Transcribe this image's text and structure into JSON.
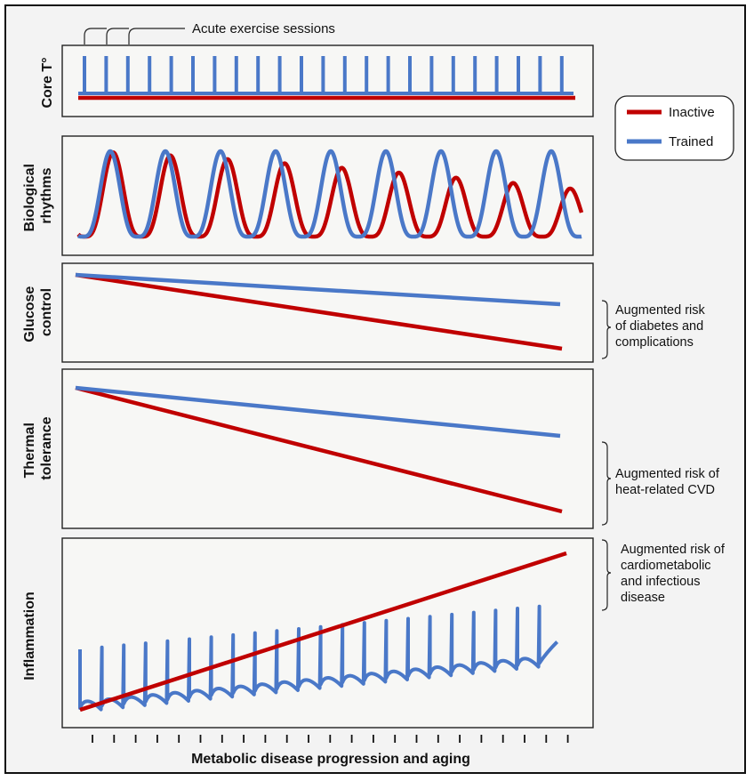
{
  "colors": {
    "inactive": "#c00000",
    "trained": "#4a78c8",
    "risk_zone": "#f08e8e"
  },
  "annotation_top": "Acute exercise sessions",
  "x_axis_label": "Metabolic disease progression and aging",
  "legend": {
    "inactive": "Inactive",
    "trained": "Trained"
  },
  "panels": {
    "core": {
      "ylabel": [
        "Core T°"
      ]
    },
    "rhythms": {
      "ylabel": [
        "Biological",
        "rhythms"
      ]
    },
    "glucose": {
      "ylabel": [
        "Glucose",
        "control"
      ],
      "risk": [
        "Augmented risk",
        "of diabetes and",
        "complications"
      ]
    },
    "thermal": {
      "ylabel": [
        "Thermal",
        "tolerance"
      ],
      "risk": [
        "Augmented risk of",
        "heat-related CVD"
      ]
    },
    "inflammation": {
      "ylabel": [
        "Inflammation"
      ],
      "risk": [
        "Augmented risk of",
        "cardiometabolic",
        "and infectious",
        "disease"
      ]
    }
  }
}
